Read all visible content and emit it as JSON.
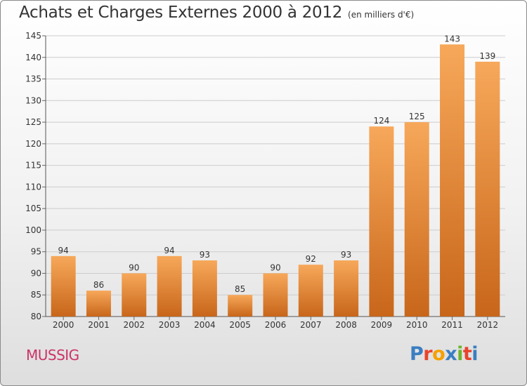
{
  "header": {
    "title": "Achats et Charges Externes 2000 à 2012",
    "subtitle": "(en milliers d'€)"
  },
  "footer": {
    "commune": "MUSSIG",
    "logo_letters": [
      "P",
      "r",
      "o",
      "x",
      "i",
      "t",
      "i"
    ],
    "logo_colors": [
      "#3a7ec2",
      "#e8442c",
      "#f5a000",
      "#3a7ec2",
      "#6cb52d",
      "#e8442c",
      "#3a7ec2"
    ]
  },
  "colors": {
    "bar_top": "#f7a85a",
    "bar_bottom": "#c8661a",
    "label": "#333333",
    "grid": "#cccccc"
  },
  "chart_data": {
    "type": "bar",
    "categories": [
      "2000",
      "2001",
      "2002",
      "2003",
      "2004",
      "2005",
      "2006",
      "2007",
      "2008",
      "2009",
      "2010",
      "2011",
      "2012"
    ],
    "values": [
      94,
      86,
      90,
      94,
      93,
      85,
      90,
      92,
      93,
      124,
      125,
      143,
      139
    ],
    "ylim": [
      80,
      145
    ],
    "yticks": [
      80,
      85,
      90,
      95,
      100,
      105,
      110,
      115,
      120,
      125,
      130,
      135,
      140,
      145
    ],
    "grid": true
  }
}
